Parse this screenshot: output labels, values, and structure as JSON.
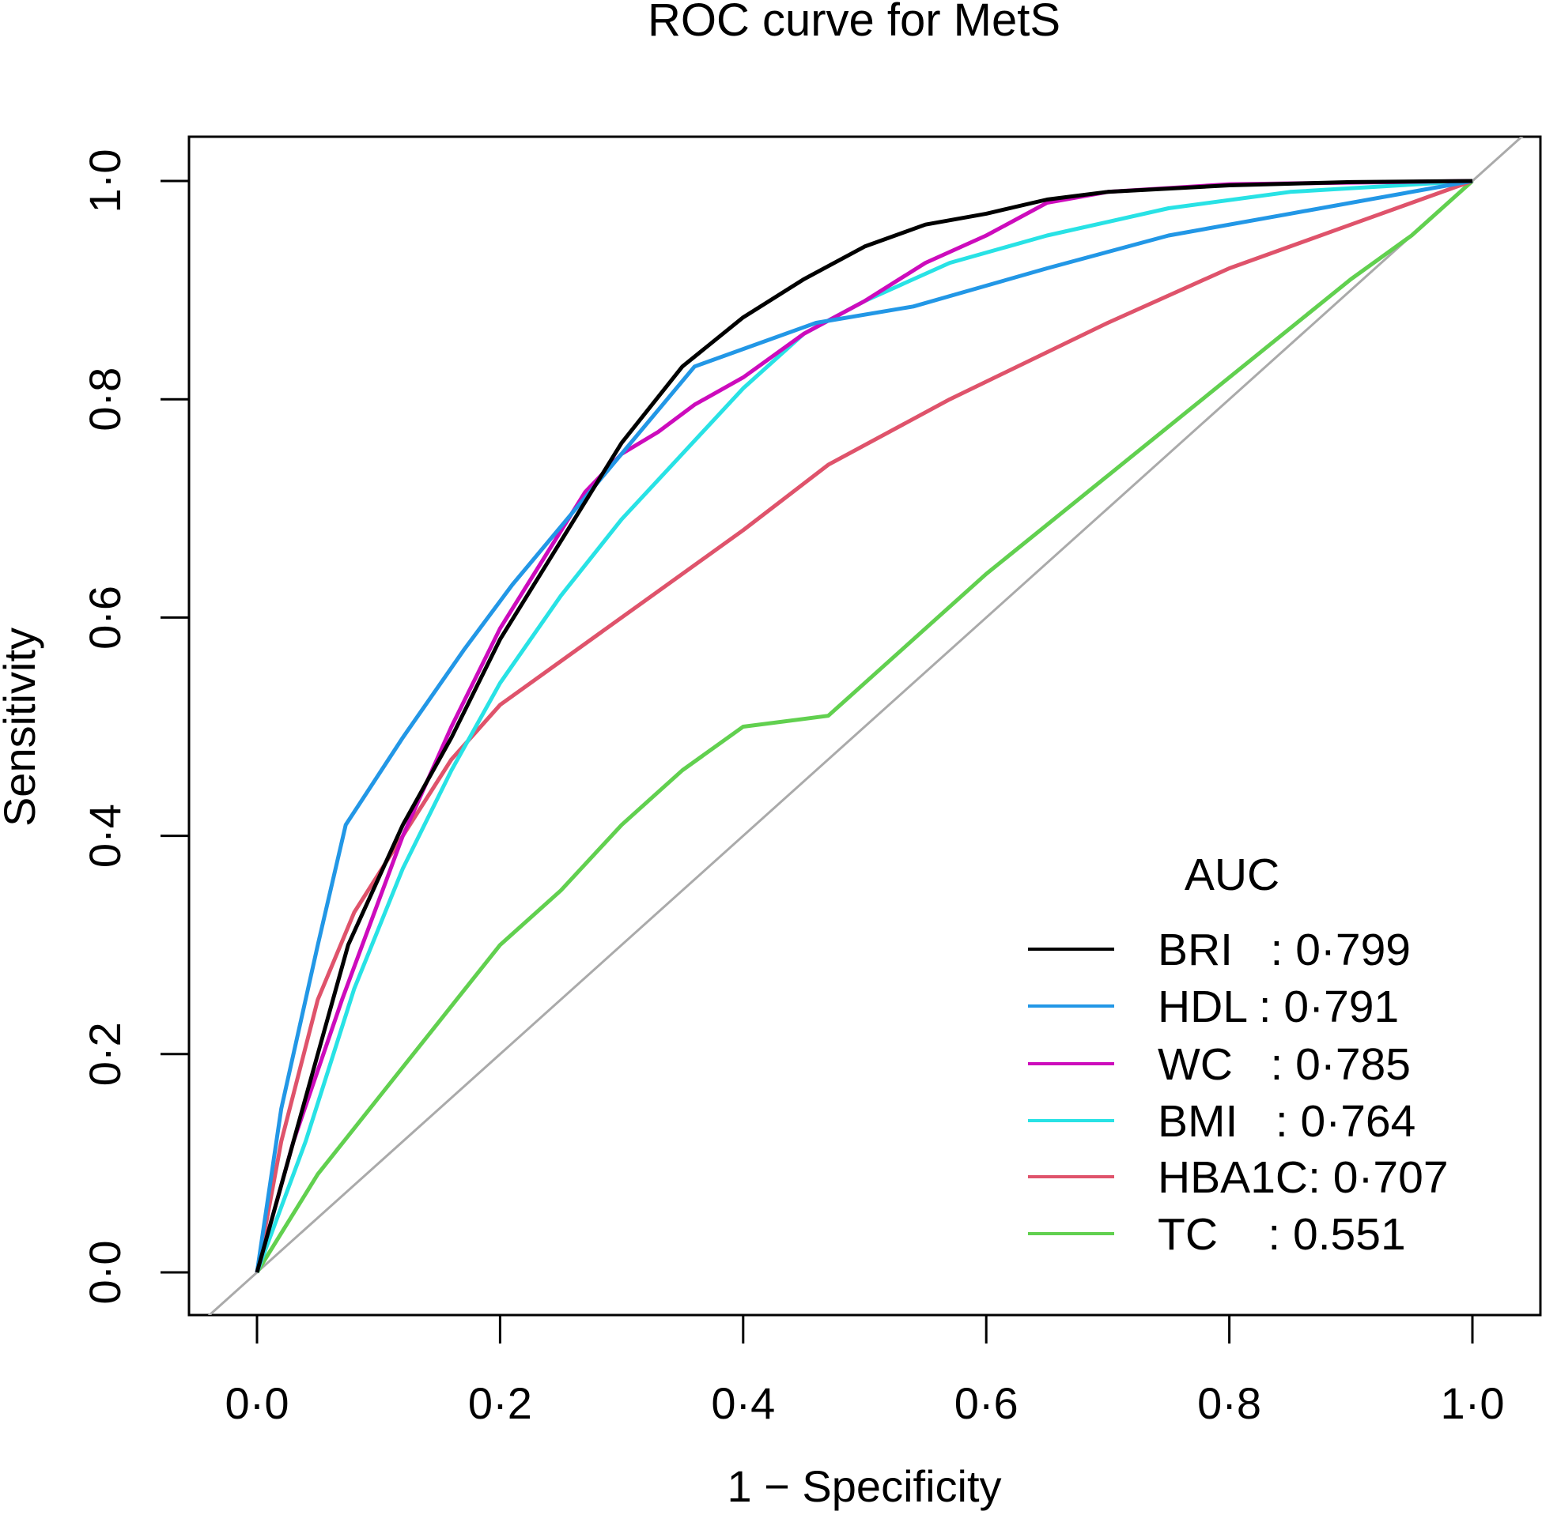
{
  "chart_data": {
    "type": "line",
    "title": "ROC curve for MetS",
    "xlabel": "1 − Specificity",
    "ylabel": "Sensitivity",
    "xlim": [
      0,
      1
    ],
    "ylim": [
      0,
      1
    ],
    "xticks": [
      "0·0",
      "0·2",
      "0·4",
      "0·6",
      "0·8",
      "1·0"
    ],
    "yticks": [
      "0·0",
      "0·2",
      "0·4",
      "0·6",
      "0·8",
      "1·0"
    ],
    "grid": false,
    "reference_line": {
      "type": "diagonal",
      "color": "#aaaaaa"
    },
    "legend": {
      "title": "AUC",
      "placement": "bottom-right",
      "entries": [
        "BRI   : 0·799",
        "HDL : 0·791",
        "WC   : 0·785",
        "BMI   : 0·764",
        "HBA1C: 0·707",
        "TC    : 0.551"
      ]
    },
    "series": [
      {
        "name": "BRI",
        "auc": "0·799",
        "color": "#000000",
        "x": [
          0,
          0.075,
          0.12,
          0.16,
          0.2,
          0.25,
          0.3,
          0.35,
          0.4,
          0.45,
          0.5,
          0.55,
          0.6,
          0.65,
          0.7,
          0.8,
          0.9,
          1
        ],
        "y": [
          0,
          0.3,
          0.41,
          0.49,
          0.58,
          0.67,
          0.76,
          0.83,
          0.875,
          0.91,
          0.94,
          0.96,
          0.97,
          0.983,
          0.99,
          0.996,
          0.999,
          1
        ]
      },
      {
        "name": "HDL",
        "auc": "0·791",
        "color": "#2297E6",
        "x": [
          0,
          0.02,
          0.05,
          0.073,
          0.12,
          0.17,
          0.21,
          0.27,
          0.36,
          0.46,
          0.54,
          0.65,
          0.75,
          0.85,
          1
        ],
        "y": [
          0,
          0.15,
          0.3,
          0.41,
          0.49,
          0.57,
          0.63,
          0.71,
          0.83,
          0.87,
          0.885,
          0.92,
          0.95,
          0.97,
          1
        ]
      },
      {
        "name": "WC",
        "auc": "0·785",
        "color": "#CD0BBC",
        "x": [
          0,
          0.03,
          0.07,
          0.12,
          0.16,
          0.2,
          0.27,
          0.3,
          0.33,
          0.36,
          0.4,
          0.45,
          0.5,
          0.55,
          0.6,
          0.65,
          0.7,
          0.8,
          1
        ],
        "y": [
          0,
          0.12,
          0.25,
          0.4,
          0.5,
          0.59,
          0.715,
          0.75,
          0.77,
          0.795,
          0.82,
          0.86,
          0.89,
          0.925,
          0.95,
          0.98,
          0.99,
          0.997,
          1
        ]
      },
      {
        "name": "BMI",
        "auc": "0·764",
        "color": "#28E2E5",
        "x": [
          0,
          0.04,
          0.08,
          0.12,
          0.16,
          0.2,
          0.25,
          0.3,
          0.35,
          0.4,
          0.45,
          0.5,
          0.57,
          0.65,
          0.75,
          0.85,
          1
        ],
        "y": [
          0,
          0.12,
          0.26,
          0.37,
          0.46,
          0.54,
          0.62,
          0.69,
          0.75,
          0.81,
          0.86,
          0.89,
          0.925,
          0.95,
          0.975,
          0.99,
          1
        ]
      },
      {
        "name": "HBA1C",
        "auc": "0·707",
        "color": "#DF536B",
        "x": [
          0,
          0.02,
          0.05,
          0.08,
          0.12,
          0.16,
          0.2,
          0.3,
          0.4,
          0.47,
          0.57,
          0.7,
          0.8,
          0.9,
          1
        ],
        "y": [
          0,
          0.12,
          0.25,
          0.33,
          0.4,
          0.47,
          0.52,
          0.6,
          0.68,
          0.74,
          0.8,
          0.87,
          0.92,
          0.96,
          1
        ]
      },
      {
        "name": "TC",
        "auc": "0.551",
        "color": "#61D04F",
        "x": [
          0,
          0.05,
          0.1,
          0.15,
          0.2,
          0.25,
          0.3,
          0.35,
          0.4,
          0.47,
          0.5,
          0.6,
          0.7,
          0.8,
          0.9,
          0.95,
          1
        ],
        "y": [
          0,
          0.09,
          0.16,
          0.23,
          0.3,
          0.35,
          0.41,
          0.46,
          0.5,
          0.51,
          0.54,
          0.64,
          0.73,
          0.82,
          0.91,
          0.95,
          1
        ]
      }
    ]
  }
}
